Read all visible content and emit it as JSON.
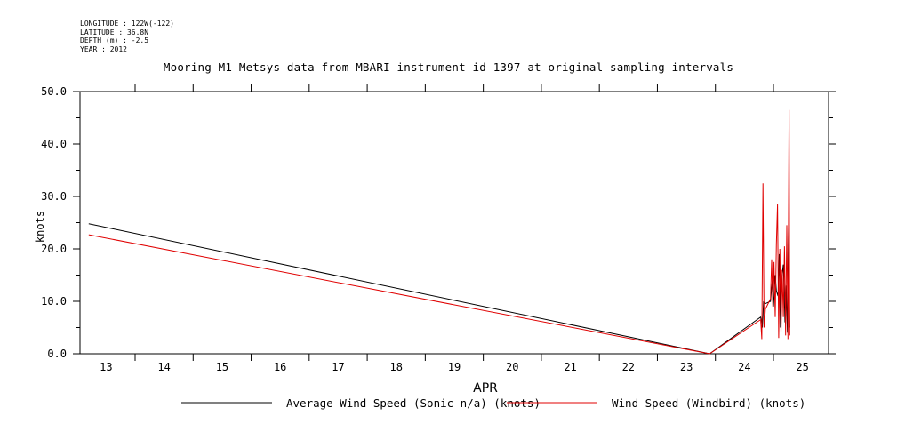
{
  "meta": {
    "longitude": "LONGITUDE : 122W(-122)",
    "latitude": "LATITUDE : 36.8N",
    "depth": "DEPTH (m) : -2.5",
    "year": "YEAR : 2012"
  },
  "chart_data": {
    "type": "line",
    "title": "Mooring M1 Metsys data from MBARI instrument id 1397 at original sampling intervals",
    "xlabel": "APR",
    "ylabel": "knots",
    "xlim": [
      12.55,
      25.45
    ],
    "ylim": [
      0,
      50
    ],
    "x_ticks": [
      13,
      14,
      15,
      16,
      17,
      18,
      19,
      20,
      21,
      22,
      23,
      24,
      25
    ],
    "y_ticks": [
      0,
      10,
      20,
      30,
      40,
      50
    ],
    "y_tick_labels": [
      "0.0",
      "10.0",
      "20.0",
      "30.0",
      "40.0",
      "50.0"
    ],
    "grid": false,
    "legend_position": "bottom",
    "series": [
      {
        "name": "Average Wind Speed (Sonic-n/a) (knots)",
        "color": "#000000",
        "x": [
          12.7,
          23.4,
          24.28,
          24.31,
          24.33,
          24.35,
          24.45,
          24.48,
          24.5,
          24.53,
          24.55,
          24.58,
          24.6,
          24.62,
          24.65,
          24.67,
          24.7,
          24.72,
          24.74,
          24.76,
          24.78
        ],
        "y": [
          24.8,
          0.0,
          7.0,
          5.0,
          10.0,
          9.5,
          10.0,
          14.0,
          9.0,
          15.0,
          12.0,
          11.0,
          19.0,
          5.0,
          15.0,
          17.0,
          6.0,
          13.0,
          4.0,
          24.0,
          5.0
        ]
      },
      {
        "name": "Wind Speed (Windbird) (knots)",
        "color": "#e00000",
        "x": [
          12.7,
          23.4,
          24.28,
          24.3,
          24.32,
          24.34,
          24.36,
          24.45,
          24.47,
          24.49,
          24.51,
          24.53,
          24.55,
          24.57,
          24.59,
          24.61,
          24.63,
          24.65,
          24.67,
          24.69,
          24.71,
          24.73,
          24.75,
          24.77,
          24.78
        ],
        "y": [
          22.7,
          0.0,
          6.5,
          2.8,
          32.5,
          5.0,
          8.5,
          10.5,
          18.0,
          9.0,
          17.5,
          7.0,
          21.0,
          28.5,
          3.0,
          20.0,
          4.0,
          16.0,
          7.0,
          20.5,
          3.5,
          24.5,
          2.8,
          46.5,
          3.5
        ]
      }
    ]
  }
}
